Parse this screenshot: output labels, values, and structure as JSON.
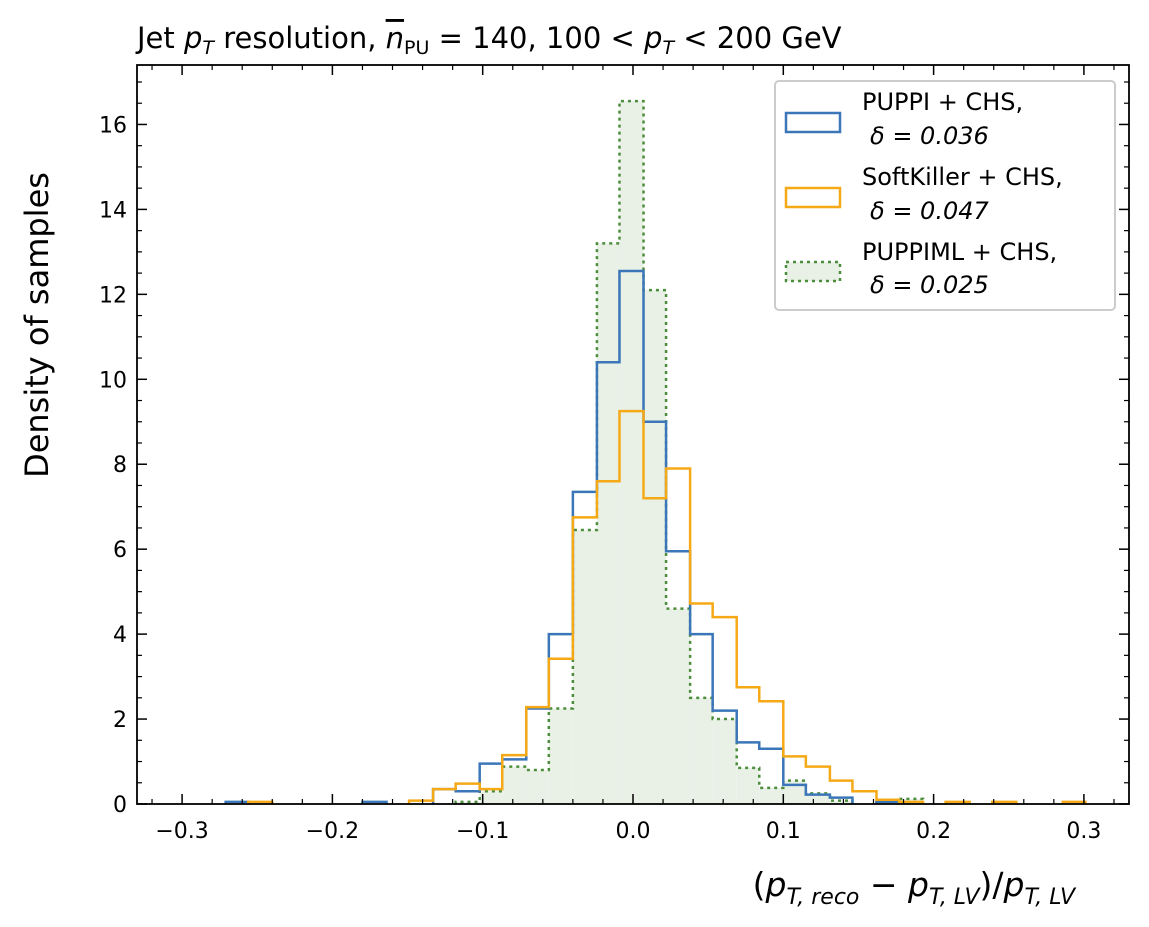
{
  "chart_data": {
    "type": "histogram",
    "title": "Jet p_T resolution, n̄_PU = 140, 100 < p_T < 200 GeV",
    "title_parts": {
      "prefix": "Jet ",
      "pt1": "p",
      "pt1_sub": "T",
      "mid1": " resolution, ",
      "n": "n",
      "n_sub": "PU",
      "eq": " = 140, 100 < ",
      "pt2": "p",
      "pt2_sub": "T",
      "suffix": " < 200 GeV"
    },
    "xlabel": "(p_{T,reco} − p_{T,LV})/p_{T,LV}",
    "xlabel_parts": {
      "open": "(",
      "p1": "p",
      "sub1": "T, reco",
      "minus": " − ",
      "p2": "p",
      "sub2": "T, LV",
      "close": ")/",
      "p3": "p",
      "sub3": "T, LV"
    },
    "ylabel": "Density of samples",
    "xlim": [
      -0.33,
      0.33
    ],
    "ylim": [
      0,
      17.4
    ],
    "xticks": [
      -0.3,
      -0.2,
      -0.1,
      0.0,
      0.1,
      0.2,
      0.3
    ],
    "xtick_labels": [
      "−0.3",
      "−0.2",
      "−0.1",
      "0.0",
      "0.1",
      "0.2",
      "0.3"
    ],
    "yticks": [
      0,
      2,
      4,
      6,
      8,
      10,
      12,
      14,
      16
    ],
    "ytick_labels": [
      "0",
      "2",
      "4",
      "6",
      "8",
      "10",
      "12",
      "14",
      "16"
    ],
    "legend_position": "top-right",
    "series": [
      {
        "name": "PUPPI + CHS,",
        "delta_label": "δ = 0.036",
        "color": "#3a76b8",
        "style": "solid",
        "fill": false,
        "steps": [
          [
            -0.271,
            -0.256,
            0.05
          ],
          [
            -0.18,
            -0.164,
            0.05
          ],
          [
            -0.133,
            -0.118,
            0.35
          ],
          [
            -0.118,
            -0.102,
            0.3
          ],
          [
            -0.102,
            -0.087,
            0.95
          ],
          [
            -0.087,
            -0.071,
            1.05
          ],
          [
            -0.071,
            -0.056,
            2.25
          ],
          [
            -0.056,
            -0.04,
            4.0
          ],
          [
            -0.04,
            -0.024,
            7.35
          ],
          [
            -0.024,
            -0.009,
            10.4
          ],
          [
            -0.009,
            0.007,
            12.55
          ],
          [
            0.007,
            0.022,
            9.0
          ],
          [
            0.022,
            0.038,
            5.95
          ],
          [
            0.038,
            0.053,
            4.0
          ],
          [
            0.053,
            0.069,
            2.2
          ],
          [
            0.069,
            0.084,
            1.45
          ],
          [
            0.084,
            0.1,
            1.3
          ],
          [
            0.1,
            0.115,
            0.45
          ],
          [
            0.115,
            0.131,
            0.22
          ],
          [
            0.131,
            0.146,
            0.15
          ],
          [
            0.162,
            0.177,
            0.05
          ]
        ]
      },
      {
        "name": "SoftKiller + CHS,",
        "delta_label": "δ = 0.047",
        "color": "#f5a916",
        "style": "solid",
        "fill": false,
        "steps": [
          [
            -0.256,
            -0.24,
            0.05
          ],
          [
            -0.149,
            -0.133,
            0.08
          ],
          [
            -0.133,
            -0.118,
            0.35
          ],
          [
            -0.118,
            -0.102,
            0.48
          ],
          [
            -0.102,
            -0.087,
            0.35
          ],
          [
            -0.087,
            -0.071,
            1.15
          ],
          [
            -0.071,
            -0.056,
            2.28
          ],
          [
            -0.056,
            -0.04,
            3.42
          ],
          [
            -0.04,
            -0.024,
            6.75
          ],
          [
            -0.024,
            -0.009,
            7.6
          ],
          [
            -0.009,
            0.007,
            9.25
          ],
          [
            0.007,
            0.022,
            7.2
          ],
          [
            0.022,
            0.038,
            7.9
          ],
          [
            0.038,
            0.053,
            4.72
          ],
          [
            0.053,
            0.069,
            4.4
          ],
          [
            0.069,
            0.084,
            2.75
          ],
          [
            0.084,
            0.1,
            2.42
          ],
          [
            0.1,
            0.115,
            1.12
          ],
          [
            0.115,
            0.131,
            0.88
          ],
          [
            0.131,
            0.146,
            0.55
          ],
          [
            0.146,
            0.162,
            0.3
          ],
          [
            0.162,
            0.177,
            0.1
          ],
          [
            0.177,
            0.193,
            0.05
          ],
          [
            0.208,
            0.224,
            0.05
          ],
          [
            0.239,
            0.255,
            0.05
          ],
          [
            0.286,
            0.301,
            0.05
          ]
        ]
      },
      {
        "name": "PUPPIML + CHS,",
        "delta_label": "δ = 0.025",
        "color": "#4c8d3c",
        "fill_color": "#e9f1e7",
        "style": "dotted",
        "fill": true,
        "steps": [
          [
            -0.118,
            -0.102,
            0.05
          ],
          [
            -0.102,
            -0.087,
            0.3
          ],
          [
            -0.087,
            -0.071,
            0.88
          ],
          [
            -0.071,
            -0.056,
            0.8
          ],
          [
            -0.056,
            -0.04,
            2.25
          ],
          [
            -0.04,
            -0.024,
            6.45
          ],
          [
            -0.024,
            -0.009,
            13.2
          ],
          [
            -0.009,
            0.007,
            16.55
          ],
          [
            0.007,
            0.022,
            12.1
          ],
          [
            0.022,
            0.038,
            4.6
          ],
          [
            0.038,
            0.053,
            2.5
          ],
          [
            0.053,
            0.069,
            2.0
          ],
          [
            0.069,
            0.084,
            0.85
          ],
          [
            0.084,
            0.1,
            0.38
          ],
          [
            0.1,
            0.115,
            0.55
          ],
          [
            0.115,
            0.131,
            0.25
          ],
          [
            0.131,
            0.146,
            0.08
          ],
          [
            0.162,
            0.177,
            0.08
          ],
          [
            0.177,
            0.193,
            0.12
          ]
        ]
      }
    ]
  }
}
